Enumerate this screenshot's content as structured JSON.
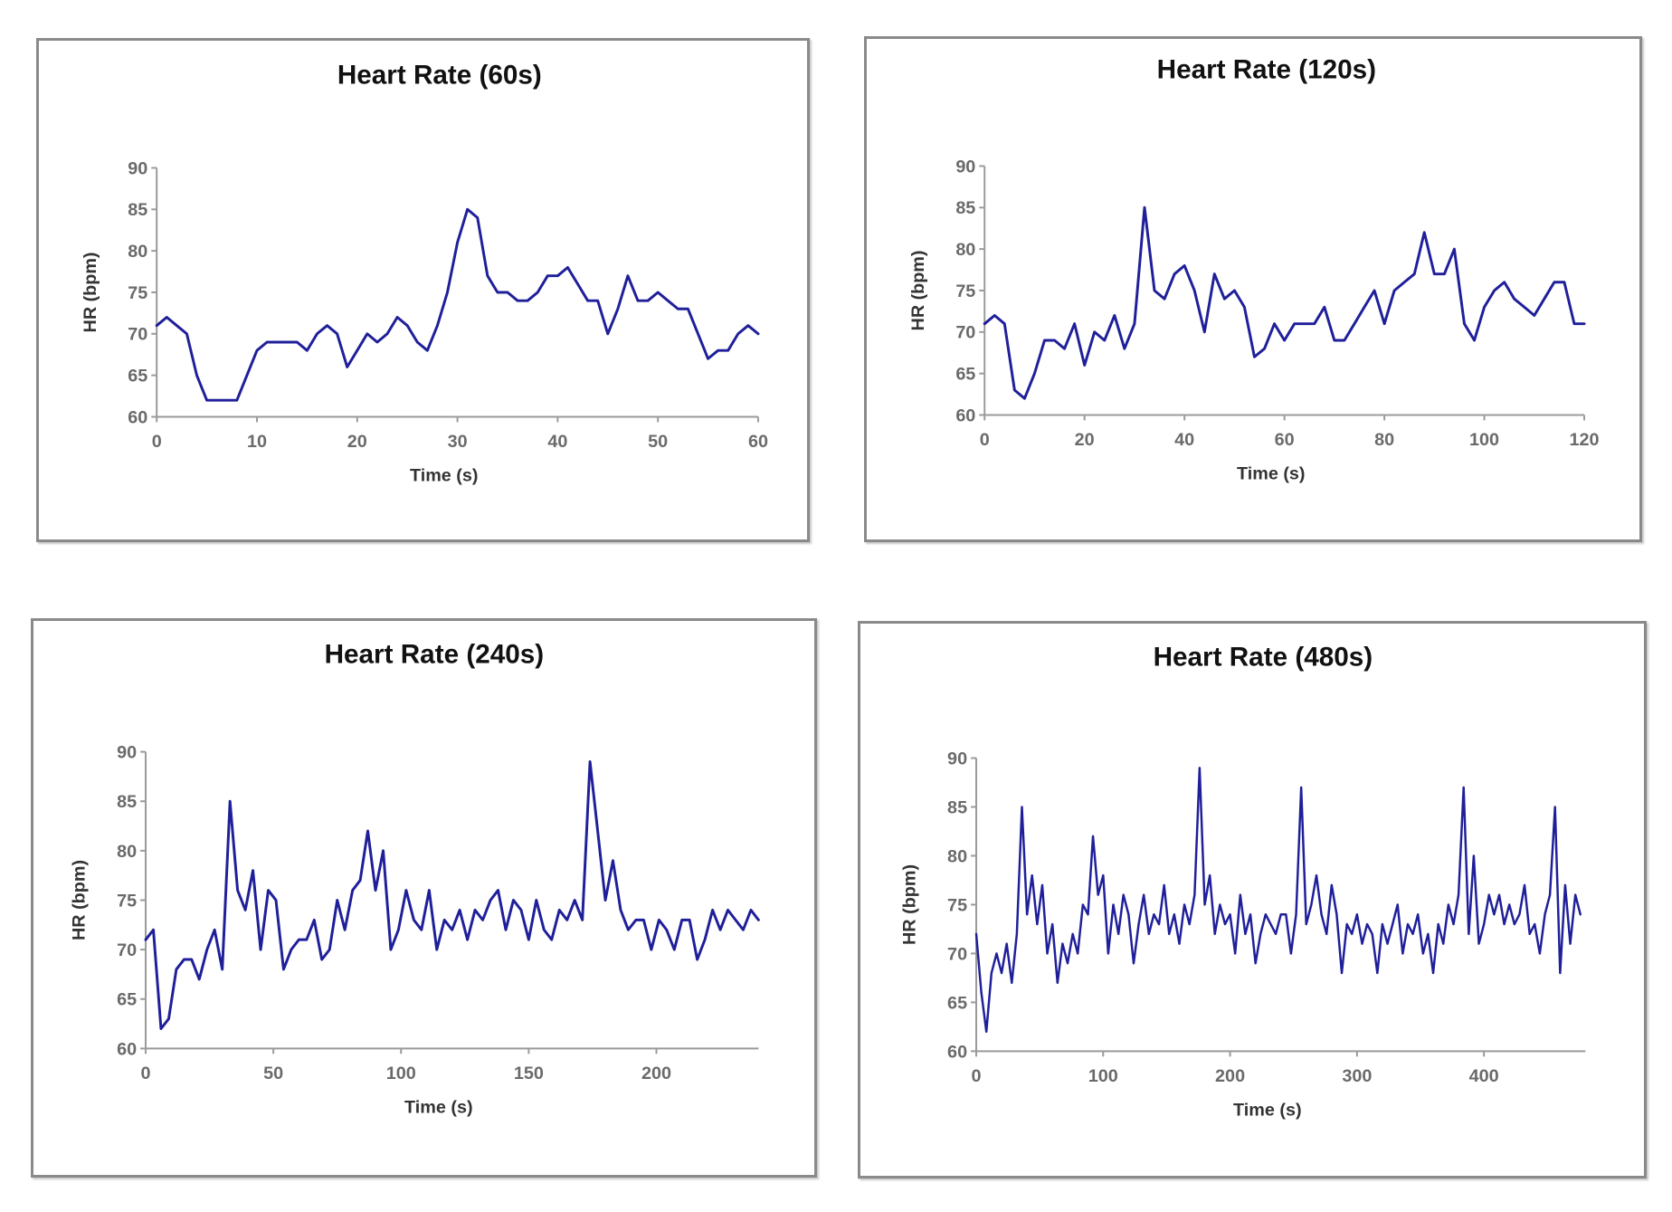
{
  "colors": {
    "line": "#1f1f9a",
    "axis": "#9a9a9a",
    "frame": "#8a8a8a"
  },
  "chart_data": [
    {
      "type": "line",
      "title": "Heart Rate (60s)",
      "xlabel": "Time (s)",
      "ylabel": "HR (bpm)",
      "xlim": [
        0,
        60
      ],
      "ylim": [
        60,
        90
      ],
      "xticks": [
        0,
        10,
        20,
        30,
        40,
        50,
        60
      ],
      "yticks": [
        60,
        65,
        70,
        75,
        80,
        85,
        90
      ],
      "grid": false,
      "series": [
        {
          "x": [
            0,
            1,
            2,
            3,
            4,
            5,
            6,
            7,
            8,
            9,
            10,
            11,
            12,
            13,
            14,
            15,
            16,
            17,
            18,
            19,
            20,
            21,
            22,
            23,
            24,
            25,
            26,
            27,
            28,
            29,
            30,
            31,
            32,
            33,
            34,
            35,
            36,
            37,
            38,
            39,
            40,
            41,
            42,
            43,
            44,
            45,
            46,
            47,
            48,
            49,
            50,
            51,
            52,
            53,
            54,
            55,
            56,
            57,
            58,
            59,
            60
          ],
          "y": [
            71,
            72,
            71,
            70,
            65,
            62,
            62,
            62,
            62,
            65,
            68,
            69,
            69,
            69,
            69,
            68,
            70,
            71,
            70,
            66,
            68,
            70,
            69,
            70,
            72,
            71,
            69,
            68,
            71,
            75,
            81,
            85,
            84,
            77,
            75,
            75,
            74,
            74,
            75,
            77,
            77,
            78,
            76,
            74,
            74,
            70,
            73,
            77,
            74,
            74,
            75,
            74,
            73,
            73,
            70,
            67,
            68,
            68,
            70,
            71,
            70
          ]
        }
      ]
    },
    {
      "type": "line",
      "title": "Heart Rate (120s)",
      "xlabel": "Time (s)",
      "ylabel": "HR (bpm)",
      "xlim": [
        0,
        120
      ],
      "ylim": [
        60,
        90
      ],
      "xticks": [
        0,
        20,
        40,
        60,
        80,
        100,
        120
      ],
      "yticks": [
        60,
        65,
        70,
        75,
        80,
        85,
        90
      ],
      "grid": false,
      "series": [
        {
          "x": [
            0,
            2,
            4,
            6,
            8,
            10,
            12,
            14,
            16,
            18,
            20,
            22,
            24,
            26,
            28,
            30,
            32,
            34,
            36,
            38,
            40,
            42,
            44,
            46,
            48,
            50,
            52,
            54,
            56,
            58,
            60,
            62,
            64,
            66,
            68,
            70,
            72,
            74,
            76,
            78,
            80,
            82,
            84,
            86,
            88,
            90,
            92,
            94,
            96,
            98,
            100,
            102,
            104,
            106,
            108,
            110,
            112,
            114,
            116,
            118,
            120
          ],
          "y": [
            71,
            72,
            71,
            63,
            62,
            65,
            69,
            69,
            68,
            71,
            66,
            70,
            69,
            72,
            68,
            71,
            85,
            75,
            74,
            77,
            78,
            75,
            70,
            77,
            74,
            75,
            73,
            67,
            68,
            71,
            69,
            71,
            71,
            71,
            73,
            69,
            69,
            71,
            73,
            75,
            71,
            75,
            76,
            77,
            82,
            77,
            77,
            80,
            71,
            69,
            73,
            75,
            76,
            74,
            73,
            72,
            74,
            76,
            76,
            71,
            71
          ]
        }
      ]
    },
    {
      "type": "line",
      "title": "Heart Rate (240s)",
      "xlabel": "Time (s)",
      "ylabel": "HR (bpm)",
      "xlim": [
        0,
        240
      ],
      "ylim": [
        60,
        90
      ],
      "xticks": [
        0,
        50,
        100,
        150,
        200
      ],
      "yticks": [
        60,
        65,
        70,
        75,
        80,
        85,
        90
      ],
      "grid": false,
      "series": [
        {
          "x": [
            0,
            3,
            6,
            9,
            12,
            15,
            18,
            21,
            24,
            27,
            30,
            33,
            36,
            39,
            42,
            45,
            48,
            51,
            54,
            57,
            60,
            63,
            66,
            69,
            72,
            75,
            78,
            81,
            84,
            87,
            90,
            93,
            96,
            99,
            102,
            105,
            108,
            111,
            114,
            117,
            120,
            123,
            126,
            129,
            132,
            135,
            138,
            141,
            144,
            147,
            150,
            153,
            156,
            159,
            162,
            165,
            168,
            171,
            174,
            177,
            180,
            183,
            186,
            189,
            192,
            195,
            198,
            201,
            204,
            207,
            210,
            213,
            216,
            219,
            222,
            225,
            228,
            231,
            234,
            237,
            240
          ],
          "y": [
            71,
            72,
            62,
            63,
            68,
            69,
            69,
            67,
            70,
            72,
            68,
            85,
            76,
            74,
            78,
            70,
            76,
            75,
            68,
            70,
            71,
            71,
            73,
            69,
            70,
            75,
            72,
            76,
            77,
            82,
            76,
            80,
            70,
            72,
            76,
            73,
            72,
            76,
            70,
            73,
            72,
            74,
            71,
            74,
            73,
            75,
            76,
            72,
            75,
            74,
            71,
            75,
            72,
            71,
            74,
            73,
            75,
            73,
            89,
            82,
            75,
            79,
            74,
            72,
            73,
            73,
            70,
            73,
            72,
            70,
            73,
            73,
            69,
            71,
            74,
            72,
            74,
            73,
            72,
            74,
            73
          ]
        }
      ]
    },
    {
      "type": "line",
      "title": "Heart Rate (480s)",
      "xlabel": "Time (s)",
      "ylabel": "HR (bpm)",
      "xlim": [
        0,
        480
      ],
      "ylim": [
        60,
        90
      ],
      "xticks": [
        0,
        100,
        200,
        300,
        400
      ],
      "yticks": [
        60,
        65,
        70,
        75,
        80,
        85,
        90
      ],
      "grid": false,
      "series": [
        {
          "x": [
            0,
            4,
            8,
            12,
            16,
            20,
            24,
            28,
            32,
            36,
            40,
            44,
            48,
            52,
            56,
            60,
            64,
            68,
            72,
            76,
            80,
            84,
            88,
            92,
            96,
            100,
            104,
            108,
            112,
            116,
            120,
            124,
            128,
            132,
            136,
            140,
            144,
            148,
            152,
            156,
            160,
            164,
            168,
            172,
            176,
            180,
            184,
            188,
            192,
            196,
            200,
            204,
            208,
            212,
            216,
            220,
            224,
            228,
            232,
            236,
            240,
            244,
            248,
            252,
            256,
            260,
            264,
            268,
            272,
            276,
            280,
            284,
            288,
            292,
            296,
            300,
            304,
            308,
            312,
            316,
            320,
            324,
            328,
            332,
            336,
            340,
            344,
            348,
            352,
            356,
            360,
            364,
            368,
            372,
            376,
            380,
            384,
            388,
            392,
            396,
            400,
            404,
            408,
            412,
            416,
            420,
            424,
            428,
            432,
            436,
            440,
            444,
            448,
            452,
            456,
            460,
            464,
            468,
            472,
            476
          ],
          "y": [
            72,
            66,
            62,
            68,
            70,
            68,
            71,
            67,
            72,
            85,
            74,
            78,
            73,
            77,
            70,
            73,
            67,
            71,
            69,
            72,
            70,
            75,
            74,
            82,
            76,
            78,
            70,
            75,
            72,
            76,
            74,
            69,
            73,
            76,
            72,
            74,
            73,
            77,
            72,
            74,
            71,
            75,
            73,
            76,
            89,
            75,
            78,
            72,
            75,
            73,
            74,
            70,
            76,
            72,
            74,
            69,
            72,
            74,
            73,
            72,
            74,
            74,
            70,
            74,
            87,
            73,
            75,
            78,
            74,
            72,
            77,
            74,
            68,
            73,
            72,
            74,
            71,
            73,
            72,
            68,
            73,
            71,
            73,
            75,
            70,
            73,
            72,
            74,
            70,
            72,
            68,
            73,
            71,
            75,
            73,
            76,
            87,
            72,
            80,
            71,
            73,
            76,
            74,
            76,
            73,
            75,
            73,
            74,
            77,
            72,
            73,
            70,
            74,
            76,
            85,
            68,
            77,
            71,
            76,
            74
          ]
        }
      ]
    }
  ]
}
